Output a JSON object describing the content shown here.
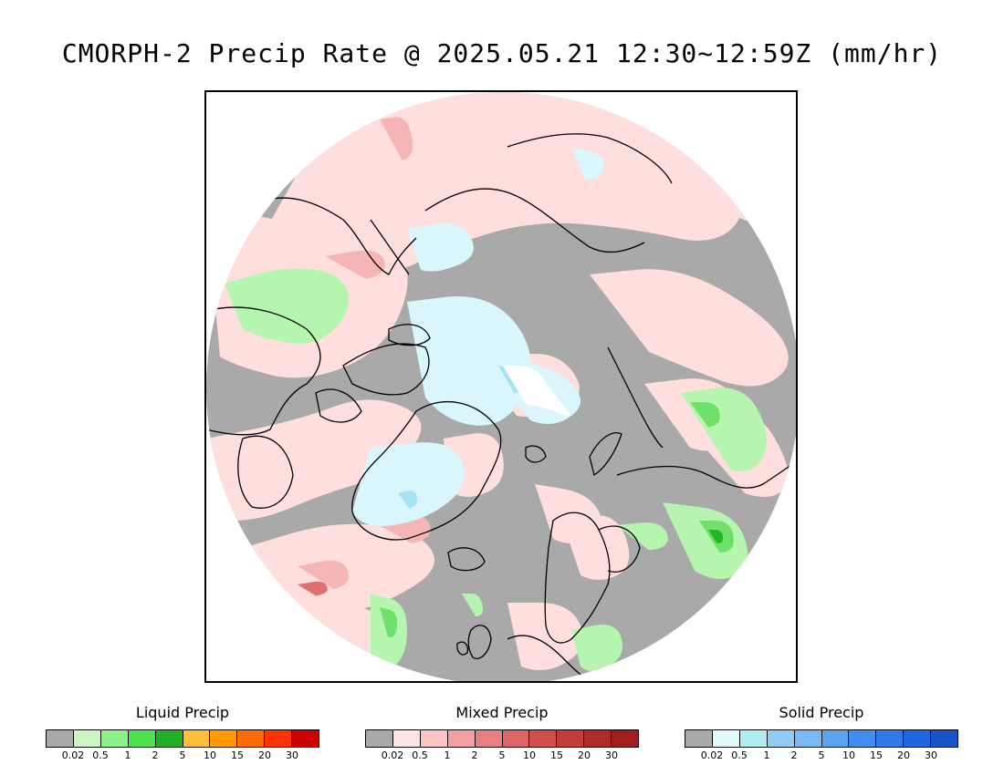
{
  "title": "CMORPH-2 Precip Rate @ 2025.05.21 12:30~12:59Z (mm/hr)",
  "map": {
    "projection": "north polar stereographic",
    "colors": {
      "no_precip": "#a9a9a9",
      "mixed_light": "#ffdede",
      "mixed_mid": "#f5b5b5",
      "mixed_heavy": "#e07070",
      "liquid_light": "#b6f5b0",
      "liquid_mid": "#6fe06a",
      "liquid_heavy": "#22b822",
      "solid_light": "#d8f6fb",
      "solid_mid": "#a6e4f3",
      "coast": "#000000"
    }
  },
  "legends": [
    {
      "title": "Liquid Precip",
      "colors": [
        "#a9a9a9",
        "#c8f7c0",
        "#8ef08a",
        "#4fe04f",
        "#22b022",
        "#ffbf3c",
        "#ff9a00",
        "#ff6a00",
        "#ff3300",
        "#cc0000"
      ],
      "ticks": [
        "0.02",
        "0.5",
        "1",
        "2",
        "5",
        "10",
        "15",
        "20",
        "30"
      ]
    },
    {
      "title": "Mixed Precip",
      "colors": [
        "#a9a9a9",
        "#ffe4e6",
        "#ffc4c6",
        "#f4a0a2",
        "#e88080",
        "#dc6464",
        "#d24f50",
        "#c43c3c",
        "#b02b2b",
        "#9e1e1e"
      ],
      "ticks": [
        "0.02",
        "0.5",
        "1",
        "2",
        "5",
        "10",
        "15",
        "20",
        "30"
      ]
    },
    {
      "title": "Solid Precip",
      "colors": [
        "#a9a9a9",
        "#dff9fb",
        "#b0eef6",
        "#92ccf5",
        "#7ab8f3",
        "#5aa4f0",
        "#428ef0",
        "#2f7aeb",
        "#2066e0",
        "#1a52c8"
      ],
      "ticks": [
        "0.02",
        "0.5",
        "1",
        "2",
        "5",
        "10",
        "15",
        "20",
        "30"
      ]
    }
  ]
}
